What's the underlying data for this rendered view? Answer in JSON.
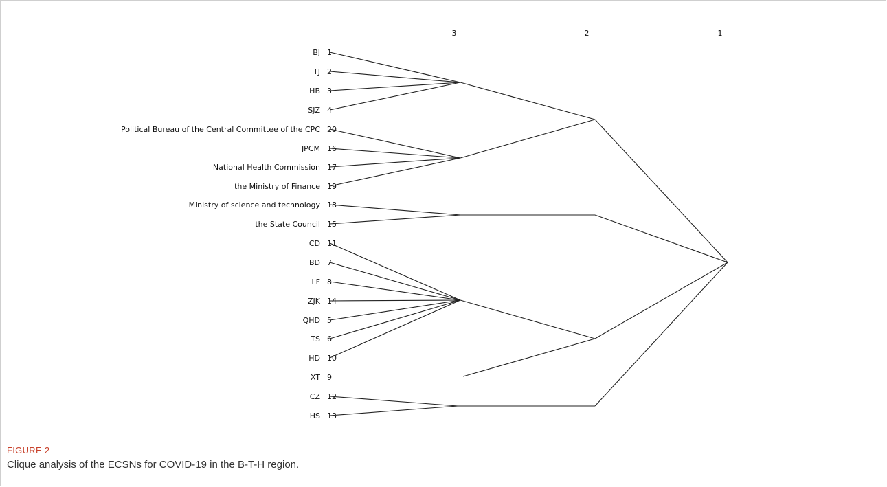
{
  "figure": {
    "label": "FIGURE 2",
    "caption": "Clique analysis of the ECSNs for COVID-19 in the B-T-H region."
  },
  "level_labels": [
    "3",
    "2",
    "1"
  ],
  "leaves": [
    {
      "name": "BJ",
      "id": "1"
    },
    {
      "name": "TJ",
      "id": "2"
    },
    {
      "name": "HB",
      "id": "3"
    },
    {
      "name": "SJZ",
      "id": "4"
    },
    {
      "name": "Political Bureau of the Central Committee of the CPC",
      "id": "20"
    },
    {
      "name": "JPCM",
      "id": "16"
    },
    {
      "name": "National Health Commission",
      "id": "17"
    },
    {
      "name": "the Ministry of Finance",
      "id": "19"
    },
    {
      "name": "Ministry of science and technology",
      "id": "18"
    },
    {
      "name": "the State Council",
      "id": "15"
    },
    {
      "name": "CD",
      "id": "11"
    },
    {
      "name": "BD",
      "id": "7"
    },
    {
      "name": "LF",
      "id": "8"
    },
    {
      "name": "ZJK",
      "id": "14"
    },
    {
      "name": "QHD",
      "id": "5"
    },
    {
      "name": "TS",
      "id": "6"
    },
    {
      "name": "HD",
      "id": "10"
    },
    {
      "name": "XT",
      "id": "9"
    },
    {
      "name": "CZ",
      "id": "12"
    },
    {
      "name": "HS",
      "id": "13"
    }
  ]
}
